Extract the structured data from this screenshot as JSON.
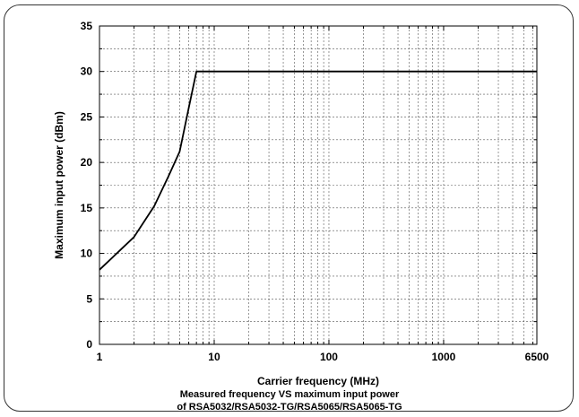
{
  "chart_data": {
    "type": "line",
    "xlabel": "Carrier frequency (MHz)",
    "ylabel": "Maximum input power (dBm)",
    "xscale": "log",
    "xlim": [
      1,
      6500
    ],
    "ylim": [
      0,
      35
    ],
    "grid": true,
    "x_ticks": [
      {
        "value": 1,
        "label": "1"
      },
      {
        "value": 10,
        "label": "10"
      },
      {
        "value": 100,
        "label": "100"
      },
      {
        "value": 1000,
        "label": "1000"
      },
      {
        "value": 6500,
        "label": "6500"
      }
    ],
    "y_ticks": [
      {
        "value": 0,
        "label": "0"
      },
      {
        "value": 5,
        "label": "5"
      },
      {
        "value": 10,
        "label": "10"
      },
      {
        "value": 15,
        "label": "15"
      },
      {
        "value": 20,
        "label": "20"
      },
      {
        "value": 25,
        "label": "25"
      },
      {
        "value": 30,
        "label": "30"
      },
      {
        "value": 35,
        "label": "35"
      }
    ],
    "series": [
      {
        "color": "#000000",
        "points": [
          [
            1,
            8.2
          ],
          [
            2,
            11.8
          ],
          [
            3,
            15.2
          ],
          [
            4,
            18.5
          ],
          [
            5,
            21.2
          ],
          [
            6,
            26.0
          ],
          [
            7,
            30.0
          ],
          [
            6500,
            30.0
          ]
        ]
      }
    ]
  },
  "caption": {
    "line1": "Measured frequency VS maximum input power",
    "line2": "of RSA5032/RSA5032-TG/RSA5065/RSA5065-TG"
  }
}
